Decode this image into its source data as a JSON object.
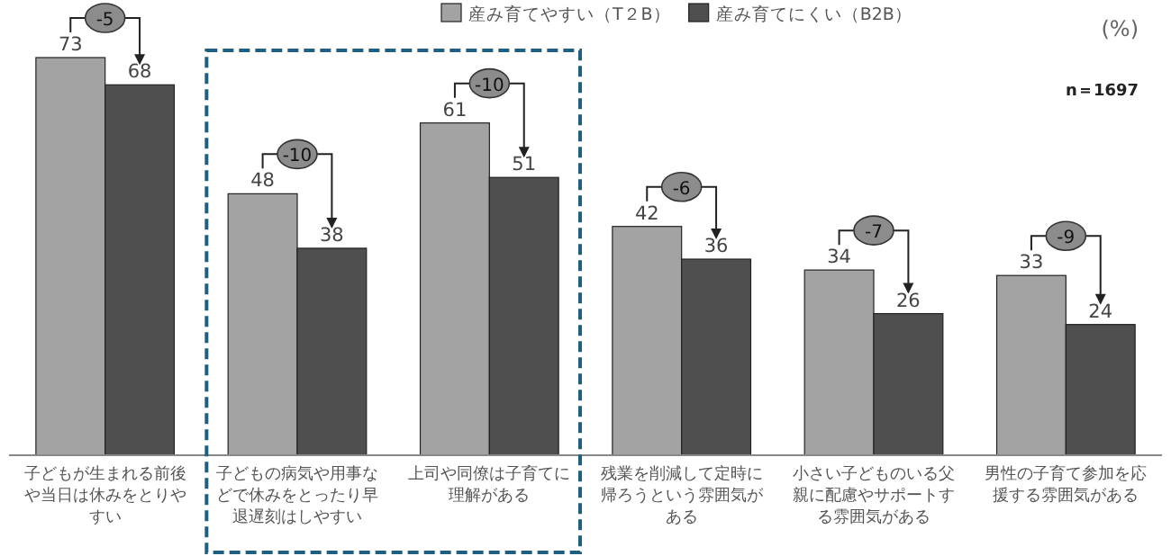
{
  "chart_data": {
    "type": "bar",
    "data_labels": true,
    "legend": "top",
    "categories": [
      "子どもが生まれる前後や当日は休みをとりやすい",
      "子どもの病気や用事などで休みをとったり早退遅刻はしやすい",
      "上司や同僚は子育てに理解がある",
      "残業を削減して定時に帰ろうという雰囲気がある",
      "小さい子どものいる父親に配慮やサポートする雰囲気がある",
      "男性の子育て参加を応援する雰囲気がある"
    ],
    "series": [
      {
        "name": "産み育てやすい（T２B）",
        "color": "#a3a3a3",
        "values": [
          73,
          48,
          61,
          42,
          34,
          33
        ]
      },
      {
        "name": "産み育てにくい（B2B）",
        "color": "#4f4f4f",
        "values": [
          68,
          38,
          51,
          36,
          26,
          24
        ]
      }
    ],
    "annotations": [
      "-5",
      "-10",
      "-10",
      "-6",
      "-7",
      "-9",
      "(%)",
      "n＝1697"
    ]
  }
}
